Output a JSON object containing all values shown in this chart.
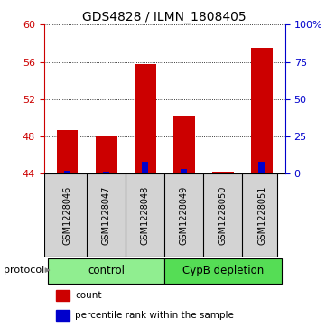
{
  "title": "GDS4828 / ILMN_1808405",
  "samples": [
    "GSM1228046",
    "GSM1228047",
    "GSM1228048",
    "GSM1228049",
    "GSM1228050",
    "GSM1228051"
  ],
  "red_values": [
    48.7,
    48.0,
    55.8,
    50.2,
    44.2,
    57.5
  ],
  "blue_values": [
    44.3,
    44.2,
    45.3,
    44.5,
    44.1,
    45.3
  ],
  "base_value": 44.0,
  "ylim_left": [
    44,
    60
  ],
  "ylim_right": [
    0,
    100
  ],
  "yticks_left": [
    44,
    48,
    52,
    56,
    60
  ],
  "yticks_right": [
    0,
    25,
    50,
    75,
    100
  ],
  "ytick_labels_right": [
    "0",
    "25",
    "50",
    "75",
    "100%"
  ],
  "ytick_labels_left": [
    "44",
    "48",
    "52",
    "56",
    "60"
  ],
  "left_axis_color": "#cc0000",
  "right_axis_color": "#0000cc",
  "red_bar_color": "#cc0000",
  "blue_bar_color": "#0000cc",
  "bar_width": 0.55,
  "groups": [
    {
      "label": "control",
      "start": 0,
      "end": 2,
      "color": "#90ee90"
    },
    {
      "label": "CypB depletion",
      "start": 3,
      "end": 5,
      "color": "#55dd55"
    }
  ],
  "protocol_label": "protocol",
  "legend_items": [
    {
      "color": "#cc0000",
      "label": "count"
    },
    {
      "color": "#0000cc",
      "label": "percentile rank within the sample"
    }
  ],
  "title_fontsize": 10,
  "tick_fontsize": 8,
  "sample_fontsize": 7,
  "group_fontsize": 8.5,
  "legend_fontsize": 7.5,
  "background_color": "#ffffff",
  "plot_bg_color": "#ffffff",
  "sample_box_color": "#d3d3d3"
}
